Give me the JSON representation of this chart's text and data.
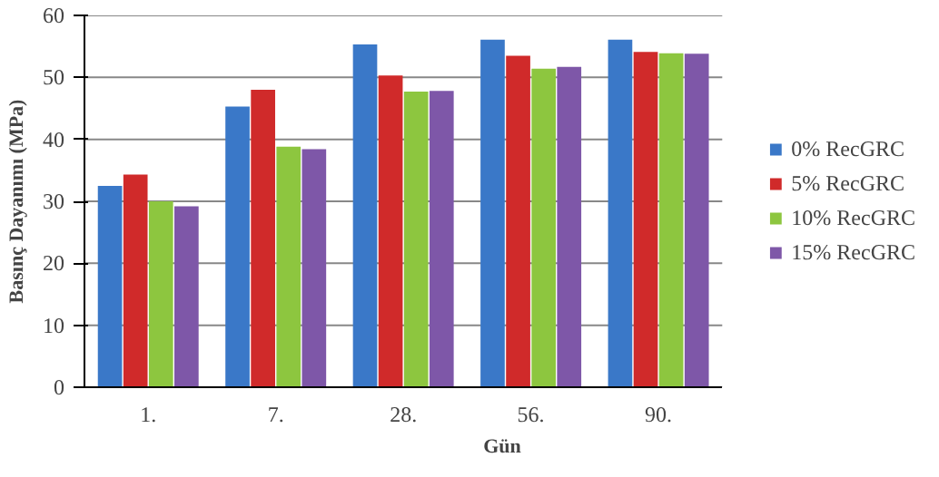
{
  "chart_data": {
    "type": "bar",
    "xlabel": "Gün",
    "ylabel": "Basınç Dayanımı (MPa)",
    "categories": [
      "1.",
      "7.",
      "28.",
      "56.",
      "90."
    ],
    "series": [
      {
        "name": "0% RecGRC",
        "color": "#3a78c8",
        "values": [
          32.5,
          45.3,
          55.3,
          56.1,
          56.1
        ]
      },
      {
        "name": "5% RecGRC",
        "color": "#d02a2a",
        "values": [
          34.3,
          48,
          50.3,
          53.5,
          54.1
        ]
      },
      {
        "name": "10% RecGRC",
        "color": "#8dc63f",
        "values": [
          30,
          38.8,
          47.7,
          51.4,
          53.9
        ]
      },
      {
        "name": "15% RecGRC",
        "color": "#7e57a8",
        "values": [
          29.2,
          38.4,
          47.8,
          51.7,
          53.8
        ]
      }
    ],
    "ylim": [
      0,
      60
    ],
    "yticks": [
      0,
      10,
      20,
      30,
      40,
      50,
      60
    ],
    "grid": "y",
    "legend": "right"
  }
}
